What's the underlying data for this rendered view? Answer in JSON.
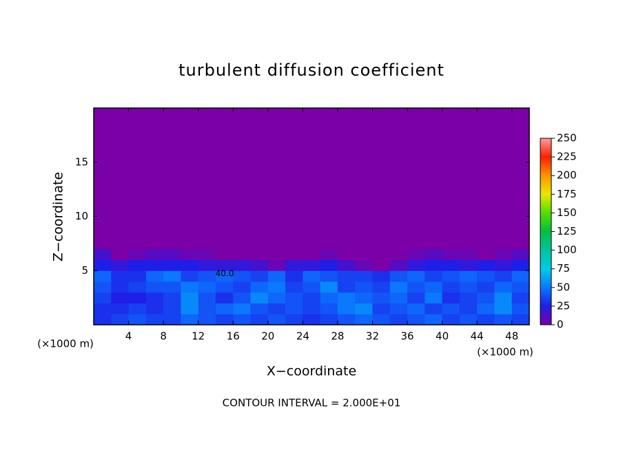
{
  "chart_data": {
    "type": "heatmap",
    "title": "turbulent diffusion coefficient",
    "x_label": "X−coordinate",
    "y_label": "Z−coordinate",
    "x_unit_left": "(×1000 m)",
    "x_unit_right": "(×1000 m)",
    "footer": "CONTOUR INTERVAL = 2.000E+01",
    "contour_label": "40.0",
    "xlim": [
      0,
      50
    ],
    "xticks": [
      4,
      8,
      12,
      16,
      20,
      24,
      28,
      32,
      36,
      40,
      44,
      48
    ],
    "ylim": [
      0,
      20
    ],
    "yticks": [
      5,
      10,
      15
    ],
    "clim": [
      0,
      250
    ],
    "cticks": [
      0,
      25,
      50,
      75,
      100,
      125,
      150,
      175,
      200,
      225,
      250
    ],
    "colors": [
      "#7c00a8",
      "#1e1ee8",
      "#0a78ff",
      "#00cce8",
      "#00c4a0",
      "#00c040",
      "#50e000",
      "#e8e800",
      "#ff9400",
      "#ff2000",
      "#ff9c9c"
    ],
    "field": {
      "x_edges": [
        0,
        2,
        4,
        6,
        8,
        10,
        12,
        14,
        16,
        18,
        20,
        22,
        24,
        26,
        28,
        30,
        32,
        34,
        36,
        38,
        40,
        42,
        44,
        46,
        48,
        50
      ],
      "z_edges": [
        0,
        1,
        2,
        3,
        4,
        5,
        6,
        7,
        20
      ],
      "values": [
        [
          30,
          35,
          40,
          35,
          35,
          45,
          40,
          35,
          40,
          35,
          40,
          35,
          30,
          35,
          40,
          45,
          40,
          35,
          40,
          45,
          35,
          40,
          35,
          40,
          35
        ],
        [
          30,
          30,
          35,
          30,
          35,
          55,
          40,
          45,
          50,
          40,
          35,
          40,
          35,
          40,
          50,
          55,
          35,
          40,
          45,
          35,
          40,
          35,
          45,
          55,
          40
        ],
        [
          35,
          25,
          25,
          30,
          35,
          55,
          40,
          30,
          40,
          55,
          45,
          40,
          35,
          45,
          50,
          45,
          40,
          45,
          35,
          50,
          30,
          35,
          40,
          55,
          35
        ],
        [
          40,
          30,
          35,
          40,
          40,
          50,
          45,
          40,
          35,
          45,
          50,
          35,
          40,
          55,
          35,
          40,
          35,
          50,
          40,
          45,
          35,
          40,
          35,
          45,
          40
        ],
        [
          45,
          30,
          30,
          45,
          50,
          35,
          40,
          45,
          40,
          35,
          45,
          30,
          45,
          40,
          35,
          35,
          30,
          40,
          45,
          35,
          40,
          45,
          40,
          35,
          45
        ],
        [
          25,
          20,
          25,
          25,
          25,
          25,
          20,
          20,
          20,
          15,
          5,
          20,
          20,
          25,
          15,
          5,
          0,
          10,
          20,
          25,
          25,
          20,
          25,
          20,
          25
        ],
        [
          15,
          0,
          5,
          10,
          10,
          5,
          5,
          0,
          0,
          0,
          0,
          0,
          0,
          5,
          0,
          0,
          0,
          0,
          5,
          10,
          5,
          5,
          0,
          5,
          10
        ],
        [
          0,
          0,
          0,
          0,
          0,
          0,
          0,
          0,
          0,
          0,
          0,
          0,
          0,
          0,
          0,
          0,
          0,
          0,
          0,
          0,
          0,
          0,
          0,
          0,
          0
        ]
      ]
    }
  }
}
